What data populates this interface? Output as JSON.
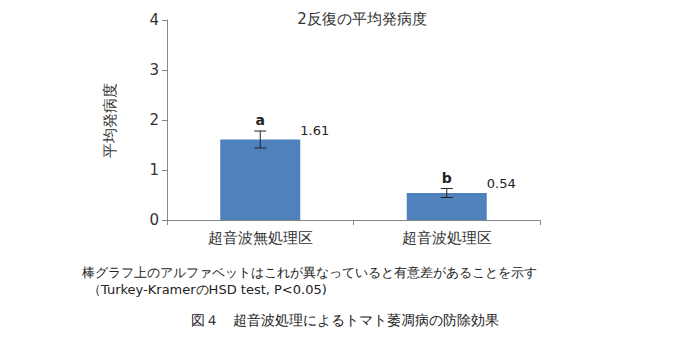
{
  "chart_data": {
    "type": "bar",
    "title": "2反復の平均発病度",
    "y_label": "平均発病度",
    "categories": [
      "超音波無処理区",
      "超音波処理区"
    ],
    "values": [
      1.61,
      0.54
    ],
    "errors": [
      0.17,
      0.09
    ],
    "letters": [
      "a",
      "b"
    ],
    "color": "#4f81bd",
    "ylim": [
      0,
      4
    ],
    "yticks": [
      0,
      1,
      2,
      3,
      4
    ],
    "grid": false,
    "data_labels": true,
    "notes": [
      "棒グラフ上のアルファベットはこれが異なっていると有意差があることを示す",
      "（Turkey-KramerのHSD test, P<0.05)"
    ],
    "caption": "図４　超音波処理によるトマト萎凋病の防除効果"
  }
}
